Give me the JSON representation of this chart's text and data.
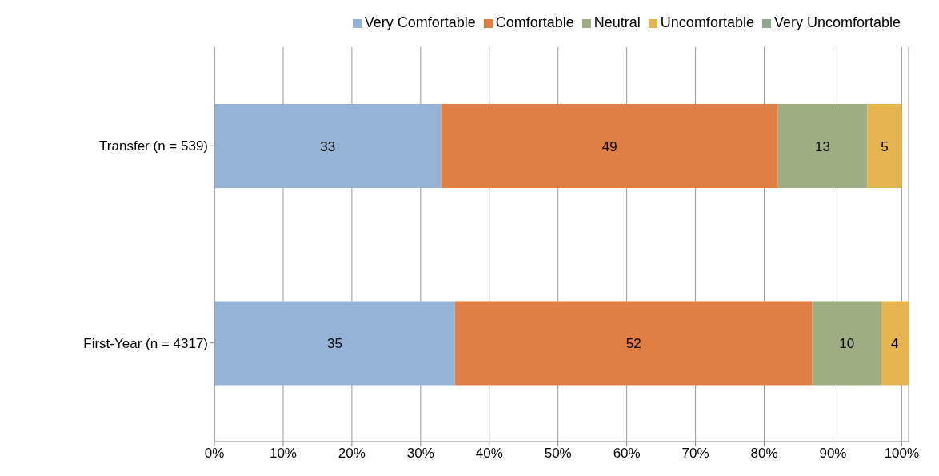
{
  "chart_data": {
    "type": "bar",
    "orientation": "horizontal",
    "stacked": true,
    "categories": [
      "Transfer (n = 539)",
      "First-Year (n = 4317)"
    ],
    "series": [
      {
        "name": "Very Comfortable",
        "color": "#95b3d7",
        "values": [
          33,
          35
        ]
      },
      {
        "name": "Comfortable",
        "color": "#e07f45",
        "values": [
          49,
          52
        ]
      },
      {
        "name": "Neutral",
        "color": "#9fae82",
        "values": [
          13,
          10
        ]
      },
      {
        "name": "Uncomfortable",
        "color": "#e6b44f",
        "values": [
          5,
          4
        ]
      },
      {
        "name": "Very Uncomfortable",
        "color": "#8fa98a",
        "values": [
          null,
          null
        ]
      }
    ],
    "xlim": [
      0,
      101
    ],
    "xticks": [
      {
        "value": 0,
        "label": "0%"
      },
      {
        "value": 10,
        "label": "10%"
      },
      {
        "value": 20,
        "label": "20%"
      },
      {
        "value": 30,
        "label": "30%"
      },
      {
        "value": 40,
        "label": "40%"
      },
      {
        "value": 50,
        "label": "50%"
      },
      {
        "value": 60,
        "label": "60%"
      },
      {
        "value": 70,
        "label": "70%"
      },
      {
        "value": 80,
        "label": "80%"
      },
      {
        "value": 90,
        "label": "90%"
      },
      {
        "value": 100,
        "label": "100%"
      }
    ],
    "grid": "x",
    "legend": "top",
    "data_labels": true
  }
}
